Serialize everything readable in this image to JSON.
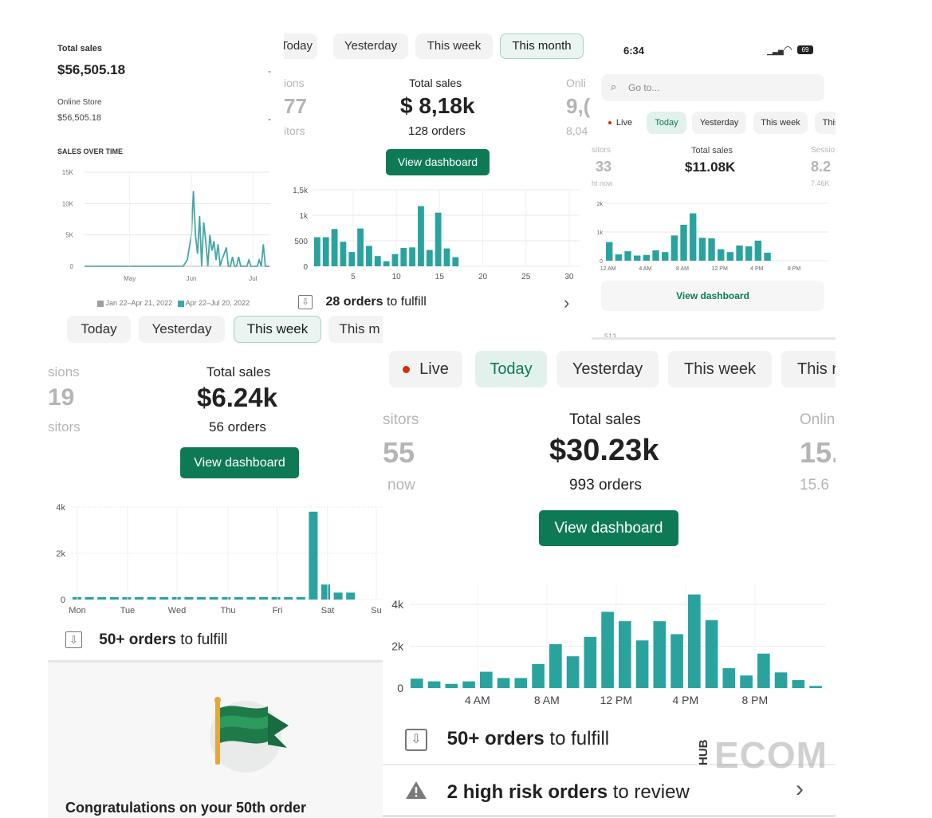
{
  "p1": {
    "total_sales_label": "Total sales",
    "total_sales_value": "$56,505.18",
    "dash1": "-",
    "online_store_label": "Online Store",
    "online_store_value": "$56,505.18",
    "dash2": "-",
    "chart_title": "SALES OVER TIME",
    "legend": [
      "Jan 22–Apr 21, 2022",
      "Apr 22–Jul 20, 2022"
    ],
    "legend_colors": [
      "#9aa0a6",
      "#3fa8a5"
    ]
  },
  "p2": {
    "tabs": [
      "Today",
      "Yesterday",
      "This week",
      "This month"
    ],
    "left_label": "ions",
    "left_value": "77",
    "left_sub": "itors",
    "center_label": "Total sales",
    "center_value": "$ 8,18k",
    "center_sub": "128 orders",
    "right_label": "Onli",
    "right_value": "9,(",
    "right_sub": "8,04",
    "button": "View dashboard",
    "fulfill_bold": "28 orders",
    "fulfill_rest": "to fulfill",
    "chevron": "›"
  },
  "p3": {
    "time": "6:34",
    "battery": "69",
    "search_placeholder": "Go to...",
    "tabs": [
      "Live",
      "Today",
      "Yesterday",
      "This week",
      "This"
    ],
    "left_label": "sitors",
    "left_value": "33",
    "left_sub": "ht now",
    "center_label": "Total sales",
    "center_value": "$11.08K",
    "right_label": "Sessio",
    "right_value": "8.2",
    "right_sub": "7.46K",
    "button": "View dashboard",
    "cut_text": "513"
  },
  "p4": {
    "tabs": [
      "Today",
      "Yesterday",
      "This week",
      "This m"
    ],
    "left_label": "sions",
    "left_value": "19",
    "left_sub": "sitors",
    "center_label": "Total sales",
    "center_value": "$6.24k",
    "center_sub": "56 orders",
    "button": "View dashboard",
    "fulfill_bold": "50+ orders",
    "fulfill_rest": "to fulfill",
    "congrats": "Congratulations on your 50th order"
  },
  "p5": {
    "tabs": [
      "Live",
      "Today",
      "Yesterday",
      "This week",
      "This r"
    ],
    "left_label": "sitors",
    "left_value": "55",
    "left_sub": "now",
    "center_label": "Total sales",
    "center_value": "$30.23k",
    "center_sub": "993 orders",
    "right_label": "Onlin",
    "right_value": "15.",
    "right_sub": "15.6",
    "button": "View dashboard",
    "fulfill_bold": "50+ orders",
    "fulfill_rest": "to fulfill",
    "risk_bold": "2 high risk orders",
    "risk_rest": "to review",
    "chevron": "›"
  },
  "watermark": {
    "hub": "HUB",
    "ecom": "ECOM"
  },
  "colors": {
    "bar": "#2aa39f",
    "line": "#46a7a4",
    "accent": "#0e7a55",
    "risk": "#d72c0d"
  },
  "chart_data": [
    {
      "type": "line",
      "title": "SALES OVER TIME",
      "x_ticks": [
        "May",
        "Jun",
        "Jul"
      ],
      "ylabel": "",
      "xlabel": "",
      "y_ticks": [
        "0",
        "5K",
        "10K",
        "15K"
      ],
      "ylim": [
        0,
        15000
      ],
      "series": [
        {
          "name": "Apr 22–Jul 20, 2022",
          "x": [
            0,
            8,
            16,
            24,
            32,
            40,
            48,
            50,
            52,
            53,
            54,
            55,
            56,
            57,
            58,
            59,
            60,
            61,
            62,
            63,
            64,
            65,
            66,
            67,
            68,
            69,
            70,
            71,
            72,
            73,
            74,
            75,
            76,
            77,
            78,
            79,
            80,
            81,
            82,
            83,
            84,
            85,
            86,
            87,
            88,
            89,
            90
          ],
          "values": [
            0,
            0,
            0,
            0,
            0,
            0,
            0,
            1000,
            5000,
            12000,
            5000,
            2000,
            8000,
            0,
            7000,
            4000,
            0,
            5000,
            2500,
            4000,
            1000,
            3500,
            0,
            1200,
            2000,
            3000,
            0,
            0,
            1500,
            0,
            0,
            1500,
            0,
            0,
            0,
            0,
            1000,
            0,
            0,
            0,
            0,
            1000,
            0,
            3500,
            0,
            0,
            0
          ]
        },
        {
          "name": "Jan 22–Apr 21, 2022",
          "x": [
            0,
            90
          ],
          "values": [
            0,
            0
          ]
        }
      ]
    },
    {
      "type": "bar",
      "y_ticks": [
        "0",
        "500",
        "1k",
        "1,5k"
      ],
      "ylim": [
        0,
        1500
      ],
      "x_ticks": [
        "5",
        "10",
        "15",
        "20",
        "25",
        "30"
      ],
      "categories": [
        1,
        2,
        3,
        4,
        5,
        6,
        7,
        8,
        9,
        10,
        11,
        12,
        13,
        14,
        15,
        16,
        17
      ],
      "values": [
        570,
        570,
        730,
        480,
        280,
        740,
        400,
        200,
        100,
        240,
        360,
        370,
        1180,
        320,
        1050,
        350,
        180
      ]
    },
    {
      "type": "bar",
      "y_ticks": [
        "0",
        "1k",
        "2k"
      ],
      "ylim": [
        0,
        2000
      ],
      "x_ticks": [
        "12 AM",
        "4 AM",
        "8 AM",
        "12 PM",
        "4 PM",
        "8 PM"
      ],
      "categories": [
        "12 AM",
        "1 AM",
        "2 AM",
        "3 AM",
        "4 AM",
        "5 AM",
        "6 AM",
        "7 AM",
        "8 AM",
        "9 AM",
        "10 AM",
        "11 AM",
        "12 PM",
        "1 PM",
        "2 PM",
        "3 PM",
        "4 PM",
        "5 PM",
        "6 PM",
        "7 PM",
        "8 PM",
        "9 PM",
        "10 PM",
        "11 PM"
      ],
      "values": [
        650,
        220,
        330,
        180,
        200,
        360,
        300,
        880,
        1250,
        1650,
        800,
        780,
        400,
        300,
        530,
        500,
        700,
        280,
        0,
        0,
        0,
        0,
        0,
        0
      ]
    },
    {
      "type": "bar",
      "y_ticks": [
        "0",
        "2k",
        "4k"
      ],
      "ylim": [
        0,
        4000
      ],
      "x_ticks": [
        "Mon",
        "Tue",
        "Wed",
        "Thu",
        "Fri",
        "Sat",
        "Su"
      ],
      "values": [
        40,
        40,
        40,
        40,
        40,
        40,
        40,
        40,
        40,
        40,
        40,
        40,
        40,
        40,
        40,
        40,
        40,
        40,
        40,
        3800,
        650,
        300,
        300,
        0,
        0
      ]
    },
    {
      "type": "bar",
      "y_ticks": [
        "0",
        "2k",
        "4k"
      ],
      "ylim": [
        0,
        5000
      ],
      "x_ticks": [
        "4 AM",
        "8 AM",
        "12 PM",
        "4 PM",
        "8 PM"
      ],
      "categories": [
        "12 AM",
        "1 AM",
        "2 AM",
        "3 AM",
        "4 AM",
        "5 AM",
        "6 AM",
        "7 AM",
        "8 AM",
        "9 AM",
        "10 AM",
        "11 AM",
        "12 PM",
        "1 PM",
        "2 PM",
        "3 PM",
        "4 PM",
        "5 PM",
        "6 PM",
        "7 PM",
        "8 PM",
        "9 PM",
        "10 PM",
        "11 PM"
      ],
      "values": [
        450,
        320,
        200,
        320,
        780,
        480,
        480,
        1150,
        2100,
        1520,
        2450,
        3650,
        3200,
        2280,
        3200,
        2580,
        4480,
        3250,
        950,
        600,
        1650,
        750,
        380,
        100
      ]
    }
  ]
}
